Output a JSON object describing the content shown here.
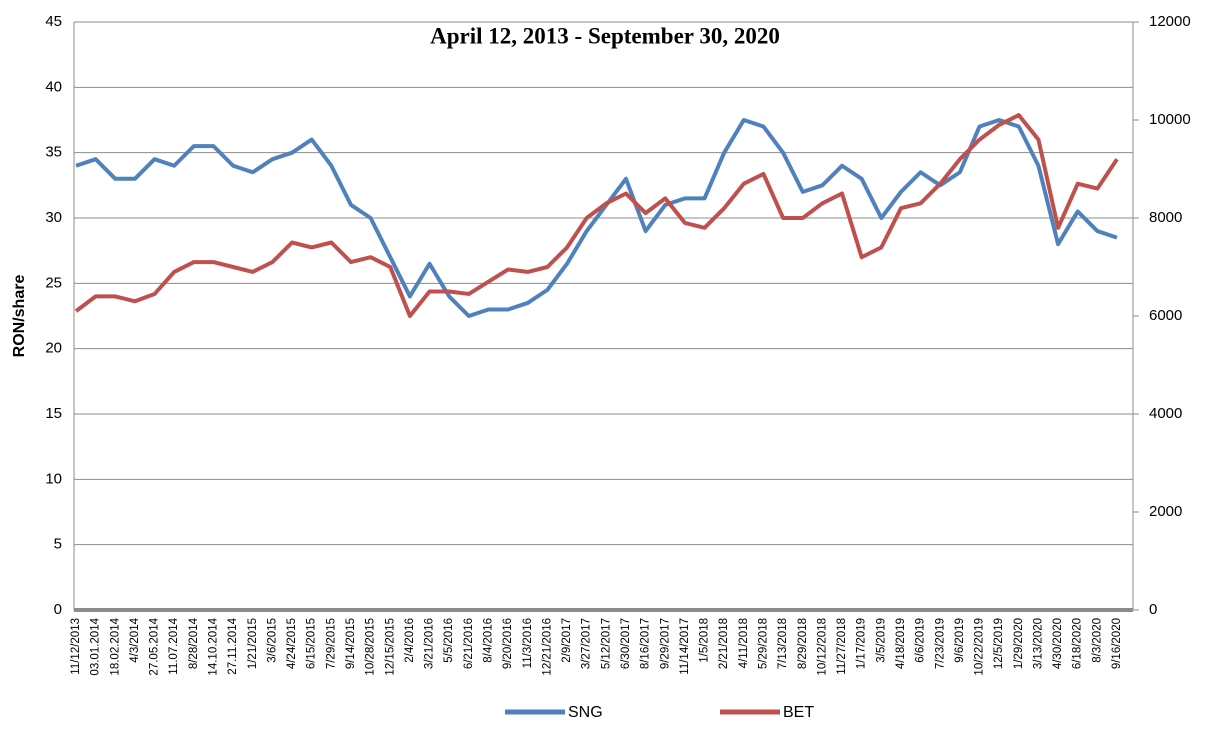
{
  "chart_data": {
    "type": "line",
    "title": "April 12,  2013 - September 30, 2020",
    "y_label": "RON/share",
    "categories": [
      "11/12/2013",
      "03.01.2014",
      "18.02.2014",
      "4/3/2014",
      "27.05.2014",
      "11.07.2014",
      "8/28/2014",
      "14.10.2014",
      "27.11.2014",
      "1/21/2015",
      "3/6/2015",
      "4/24/2015",
      "6/15/2015",
      "7/29/2015",
      "9/14/2015",
      "10/28/2015",
      "12/15/2015",
      "2/4/2016",
      "3/21/2016",
      "5/5/2016",
      "6/21/2016",
      "8/4/2016",
      "9/20/2016",
      "11/3/2016",
      "12/21/2016",
      "2/9/2017",
      "3/27/2017",
      "5/12/2017",
      "6/30/2017",
      "8/16/2017",
      "9/29/2017",
      "11/14/2017",
      "1/5/2018",
      "2/21/2018",
      "4/11/2018",
      "5/29/2018",
      "7/13/2018",
      "8/29/2018",
      "10/12/2018",
      "11/27/2018",
      "1/17/2019",
      "3/5/2019",
      "4/18/2019",
      "6/6/2019",
      "7/23/2019",
      "9/6/2019",
      "10/22/2019",
      "12/5/2019",
      "1/29/2020",
      "3/13/2020",
      "4/30/2020",
      "6/18/2020",
      "8/3/2020",
      "9/16/2020"
    ],
    "series": [
      {
        "name": "SNG",
        "color": "#4f81bd",
        "values": [
          34,
          34.5,
          33,
          33,
          34.5,
          34,
          35.5,
          35.5,
          34,
          33.5,
          34.5,
          35,
          36,
          34,
          31,
          30,
          27,
          24,
          26.5,
          24,
          22.5,
          23,
          23,
          23.5,
          24.5,
          26.5,
          29,
          31,
          33,
          29,
          31,
          31.5,
          31.5,
          35,
          37.5,
          37,
          35,
          32,
          32.5,
          34,
          33,
          30,
          32,
          33.5,
          32.5,
          33.5,
          37,
          37.5,
          37,
          34,
          28,
          30.5,
          29,
          28.5
        ]
      },
      {
        "name": "BET",
        "color": "#c0504d",
        "axis": "y2",
        "values": [
          6100,
          6400,
          6400,
          6300,
          6450,
          6900,
          7100,
          7100,
          7000,
          6900,
          7100,
          7500,
          7400,
          7500,
          7100,
          7200,
          7000,
          6000,
          6500,
          6500,
          6450,
          6700,
          6950,
          6900,
          7000,
          7400,
          8000,
          8300,
          8500,
          8100,
          8400,
          7900,
          7800,
          8200,
          8700,
          8900,
          8000,
          8000,
          8300,
          8500,
          7200,
          7400,
          8200,
          8300,
          8700,
          9200,
          9600,
          9900,
          10100,
          9600,
          7800,
          8700,
          8600,
          9200
        ]
      }
    ],
    "ylim": [
      0,
      45
    ],
    "yticks": [
      0,
      5,
      10,
      15,
      20,
      25,
      30,
      35,
      40,
      45
    ],
    "y2lim": [
      0,
      12000
    ],
    "y2ticks": [
      0,
      2000,
      4000,
      6000,
      8000,
      10000,
      12000
    ],
    "grid": true,
    "legend": "bottom"
  }
}
